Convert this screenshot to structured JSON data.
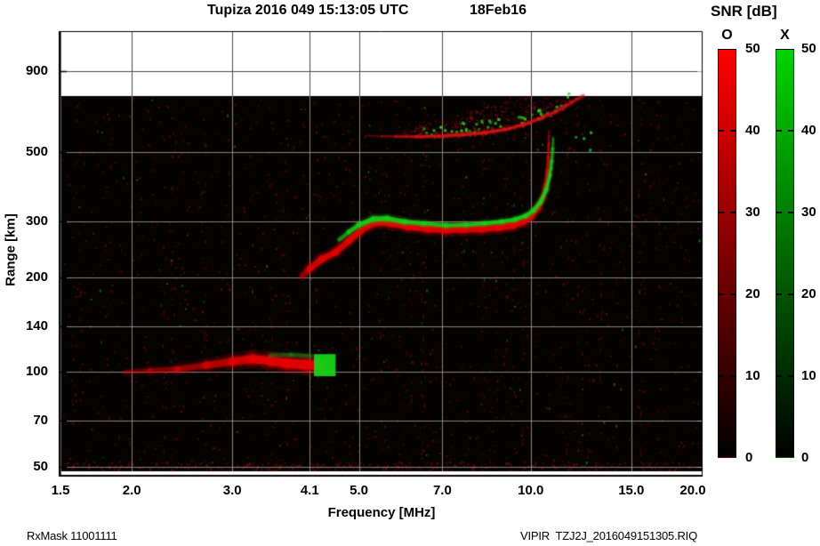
{
  "footer": {
    "left": "RxMask 11001111",
    "right": "VIPIR  TZJ2J_2016049151305.RIQ"
  },
  "chart_data": {
    "type": "heatmap",
    "title": "Tupiza 2016 049 15:13:05 UTC",
    "date_label": "18Feb16",
    "xlabel": "Frequency [MHz]",
    "ylabel": "Range [km]",
    "x_scale": "log",
    "y_scale": "log",
    "xlim": [
      1.5,
      20
    ],
    "ylim": [
      46.9,
      1206
    ],
    "x_ticks": [
      1.5,
      2.0,
      3.0,
      4.1,
      5.0,
      7.0,
      10.0,
      15.0,
      20.0
    ],
    "x_tick_labels": [
      "1.5",
      "2.0",
      "3.0",
      "4.1",
      "5.0",
      "7.0",
      "10.0",
      "15.0",
      "20.0"
    ],
    "y_ticks": [
      50,
      70,
      100,
      140,
      200,
      300,
      500,
      900
    ],
    "y_tick_labels": [
      "50",
      "70",
      "100",
      "140",
      "200",
      "300",
      "500",
      "900"
    ],
    "grid": true,
    "data_top_km": 750,
    "data_bottom_km": 48.5,
    "plot_bg": "#050202",
    "colorbar": {
      "title": "SNR [dB]",
      "min": 0,
      "max": 50,
      "ticks": [
        0,
        10,
        20,
        30,
        40,
        50
      ],
      "series": [
        {
          "name": "O",
          "color": "#ff0000"
        },
        {
          "name": "X",
          "color": "#00d400"
        }
      ]
    },
    "noise": {
      "red": "#8f1010",
      "green": "#1fae1f",
      "base_count": 1700,
      "green_fraction": 0.07,
      "streak_count": 42,
      "bottom_band_count": 450
    },
    "second_hop_cloud": {
      "f_range": [
        5.9,
        12.4
      ],
      "count": 750,
      "green_count": 46,
      "color": "#b81010",
      "green_color": "#22cc22"
    },
    "e_layer_x_patch": {
      "f_range": [
        4.17,
        4.55
      ],
      "km_range": [
        97,
        114
      ],
      "color": "#14d414"
    },
    "traces": [
      {
        "name": "E-layer-O",
        "mode": "O",
        "color": "#e60000",
        "points": [
          [
            1.95,
            100,
            4,
            0.3
          ],
          [
            2.15,
            101,
            5,
            0.4
          ],
          [
            2.4,
            102,
            6,
            0.5
          ],
          [
            2.7,
            105,
            7,
            0.6
          ],
          [
            3.0,
            108,
            8,
            0.75
          ],
          [
            3.25,
            110,
            9,
            0.9
          ],
          [
            3.5,
            108.5,
            9,
            0.95
          ],
          [
            3.75,
            106.5,
            10,
            1
          ],
          [
            4.05,
            105.5,
            10,
            1
          ],
          [
            4.3,
            105,
            10,
            1
          ]
        ]
      },
      {
        "name": "E-layer-X-weak",
        "mode": "X",
        "color": "#1d8f1d",
        "points": [
          [
            3.5,
            113,
            4,
            0.35
          ],
          [
            3.8,
            113.5,
            4,
            0.45
          ],
          [
            4.12,
            112.5,
            4,
            0.5
          ]
        ]
      },
      {
        "name": "second-hop-F-trace-O",
        "mode": "O",
        "color": "#d41414",
        "points": [
          [
            5.15,
            562,
            2,
            0.2
          ],
          [
            5.5,
            560,
            2,
            0.3
          ],
          [
            5.8,
            559,
            2.5,
            0.5
          ],
          [
            6.3,
            558,
            2.5,
            0.8
          ],
          [
            6.9,
            560,
            3,
            0.9
          ],
          [
            7.6,
            566,
            3,
            0.9
          ],
          [
            8.3,
            574,
            3,
            0.9
          ],
          [
            9.0,
            588,
            3,
            0.85
          ],
          [
            9.7,
            608,
            3,
            0.8
          ],
          [
            10.4,
            638,
            3,
            0.75
          ],
          [
            11.1,
            672,
            3,
            0.7
          ],
          [
            11.8,
            716,
            3,
            0.6
          ],
          [
            12.35,
            752,
            3,
            0.5
          ]
        ]
      },
      {
        "name": "F-asymptote-faint-O",
        "mode": "O",
        "color": "#e60000",
        "points": [
          [
            10.74,
            458,
            2,
            0.3
          ],
          [
            10.75,
            562,
            2,
            0.15
          ]
        ]
      },
      {
        "name": "F-asymptote-faint-X",
        "mode": "X",
        "color": "#17cf17",
        "points": [
          [
            10.9,
            505,
            2,
            0.25
          ],
          [
            10.93,
            558,
            2,
            0.12
          ]
        ]
      },
      {
        "name": "F-trace-O",
        "mode": "O",
        "color": "#e60000",
        "points": [
          [
            3.98,
            202,
            5,
            0.3
          ],
          [
            4.1,
            213,
            6.5,
            0.75
          ],
          [
            4.3,
            228,
            6.5,
            0.9
          ],
          [
            4.55,
            240,
            6,
            0.9
          ],
          [
            4.8,
            261,
            6,
            0.95
          ],
          [
            5.0,
            278,
            6,
            0.95
          ],
          [
            5.2,
            292,
            6,
            1
          ],
          [
            5.4,
            299,
            6.5,
            1
          ],
          [
            5.7,
            296,
            6.5,
            1
          ],
          [
            6.1,
            289,
            6.5,
            1
          ],
          [
            6.6,
            285,
            7,
            1
          ],
          [
            7.1,
            283,
            7,
            1
          ],
          [
            7.6,
            284,
            7,
            1
          ],
          [
            8.2,
            285,
            7,
            1
          ],
          [
            8.8,
            288,
            7,
            1
          ],
          [
            9.3,
            292,
            6.5,
            1
          ],
          [
            9.7,
            300,
            6,
            1
          ],
          [
            10.0,
            311,
            5.5,
            1
          ],
          [
            10.3,
            331,
            5,
            1
          ],
          [
            10.5,
            356,
            4,
            0.95
          ],
          [
            10.62,
            392,
            3.5,
            0.9
          ],
          [
            10.7,
            436,
            3,
            0.8
          ],
          [
            10.73,
            481,
            2.5,
            0.65
          ],
          [
            10.75,
            532,
            2,
            0.45
          ],
          [
            10.76,
            582,
            2,
            0.2
          ]
        ]
      },
      {
        "name": "F-trace-X",
        "mode": "X",
        "color": "#17cf17",
        "points": [
          [
            4.62,
            263,
            3.5,
            0.45
          ],
          [
            4.8,
            278,
            4,
            0.75
          ],
          [
            5.0,
            293,
            4.5,
            0.9
          ],
          [
            5.3,
            306,
            5,
            0.95
          ],
          [
            5.6,
            307,
            5,
            0.9
          ],
          [
            6.0,
            300,
            4.5,
            0.9
          ],
          [
            6.5,
            296,
            4,
            0.85
          ],
          [
            7.1,
            292,
            4,
            0.85
          ],
          [
            7.7,
            293,
            4,
            0.85
          ],
          [
            8.3,
            296,
            4,
            0.9
          ],
          [
            8.9,
            300,
            4,
            0.9
          ],
          [
            9.4,
            305,
            4,
            0.9
          ],
          [
            9.8,
            313,
            4,
            0.95
          ],
          [
            10.1,
            325,
            4,
            0.95
          ],
          [
            10.4,
            346,
            4,
            0.95
          ],
          [
            10.65,
            379,
            3.5,
            0.95
          ],
          [
            10.8,
            421,
            3,
            0.9
          ],
          [
            10.88,
            466,
            3,
            0.8
          ],
          [
            10.93,
            511,
            2.5,
            0.55
          ],
          [
            10.95,
            549,
            2,
            0.25
          ]
        ]
      }
    ]
  }
}
